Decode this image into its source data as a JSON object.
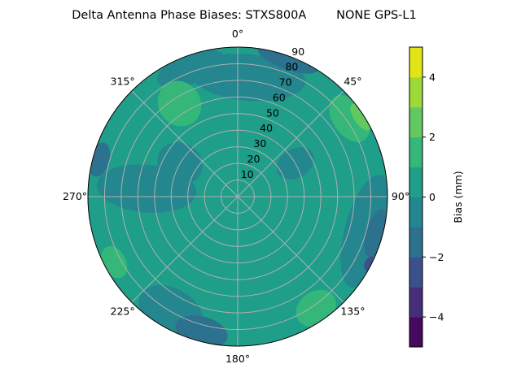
{
  "chart_data": {
    "type": "heatmap",
    "subtype": "polar-contour",
    "title": "Delta Antenna Phase Biases: STXS800A        NONE GPS-L1",
    "angular_ticks": [
      "0°",
      "45°",
      "90°",
      "135°",
      "180°",
      "225°",
      "270°",
      "315°"
    ],
    "radial_ticks": [
      "10",
      "20",
      "30",
      "40",
      "50",
      "60",
      "70",
      "80",
      "90"
    ],
    "radial_range": [
      0,
      90
    ],
    "azimuth_direction": "clockwise",
    "azimuth_zero": "top",
    "grid": true,
    "colorbar": {
      "label": "Bias (mm)",
      "range": [
        -5,
        5
      ],
      "ticks": [
        "4",
        "2",
        "0",
        "−2",
        "−4"
      ],
      "tick_values": [
        4,
        2,
        0,
        -2,
        -4
      ],
      "levels": [
        -5,
        -4,
        -3,
        -2,
        -1,
        0,
        1,
        2,
        3,
        4,
        5
      ],
      "colormap": "viridis",
      "colors": [
        "#45095e",
        "#472e7c",
        "#3b518b",
        "#2c718e",
        "#24868e",
        "#1f9e89",
        "#35b779",
        "#62c962",
        "#9ed93a",
        "#e2e418"
      ]
    },
    "background_level": [
      0,
      1
    ],
    "regions": [
      {
        "az": 5,
        "zen": 72,
        "d_zen": 14,
        "d_az": 55,
        "level": [
          -1,
          0
        ]
      },
      {
        "az": 340,
        "zen": 82,
        "d_zen": 9,
        "d_az": 30,
        "level": [
          -1,
          0
        ]
      },
      {
        "az": 275,
        "zen": 55,
        "d_zen": 30,
        "d_az": 30,
        "level": [
          -1,
          0
        ]
      },
      {
        "az": 300,
        "zen": 40,
        "d_zen": 14,
        "d_az": 35,
        "level": [
          -1,
          0
        ]
      },
      {
        "az": 210,
        "zen": 80,
        "d_zen": 14,
        "d_az": 30,
        "level": [
          -1,
          0
        ]
      },
      {
        "az": 105,
        "zen": 80,
        "d_zen": 13,
        "d_az": 50,
        "level": [
          -1,
          0
        ]
      },
      {
        "az": 60,
        "zen": 40,
        "d_zen": 12,
        "d_az": 25,
        "level": [
          -1,
          0
        ]
      },
      {
        "az": 20,
        "zen": 88,
        "d_zen": 6,
        "d_az": 25,
        "level": [
          -2,
          -1
        ]
      },
      {
        "az": 105,
        "zen": 86,
        "d_zen": 6,
        "d_az": 20,
        "level": [
          -2,
          -1
        ]
      },
      {
        "az": 195,
        "zen": 84,
        "d_zen": 9,
        "d_az": 22,
        "level": [
          -2,
          -1
        ]
      },
      {
        "az": 285,
        "zen": 86,
        "d_zen": 6,
        "d_az": 14,
        "level": [
          -2,
          -1
        ]
      },
      {
        "az": 117,
        "zen": 89,
        "d_zen": 3,
        "d_az": 6,
        "level": [
          -3,
          -2
        ]
      },
      {
        "az": 328,
        "zen": 66,
        "d_zen": 14,
        "d_az": 22,
        "level": [
          1,
          2
        ]
      },
      {
        "az": 55,
        "zen": 82,
        "d_zen": 10,
        "d_az": 22,
        "level": [
          1,
          2
        ]
      },
      {
        "az": 145,
        "zen": 82,
        "d_zen": 10,
        "d_az": 18,
        "level": [
          1,
          2
        ]
      },
      {
        "az": 242,
        "zen": 84,
        "d_zen": 7,
        "d_az": 14,
        "level": [
          1,
          2
        ]
      },
      {
        "az": 57,
        "zen": 88,
        "d_zen": 4,
        "d_az": 12,
        "level": [
          2,
          3
        ]
      }
    ]
  }
}
